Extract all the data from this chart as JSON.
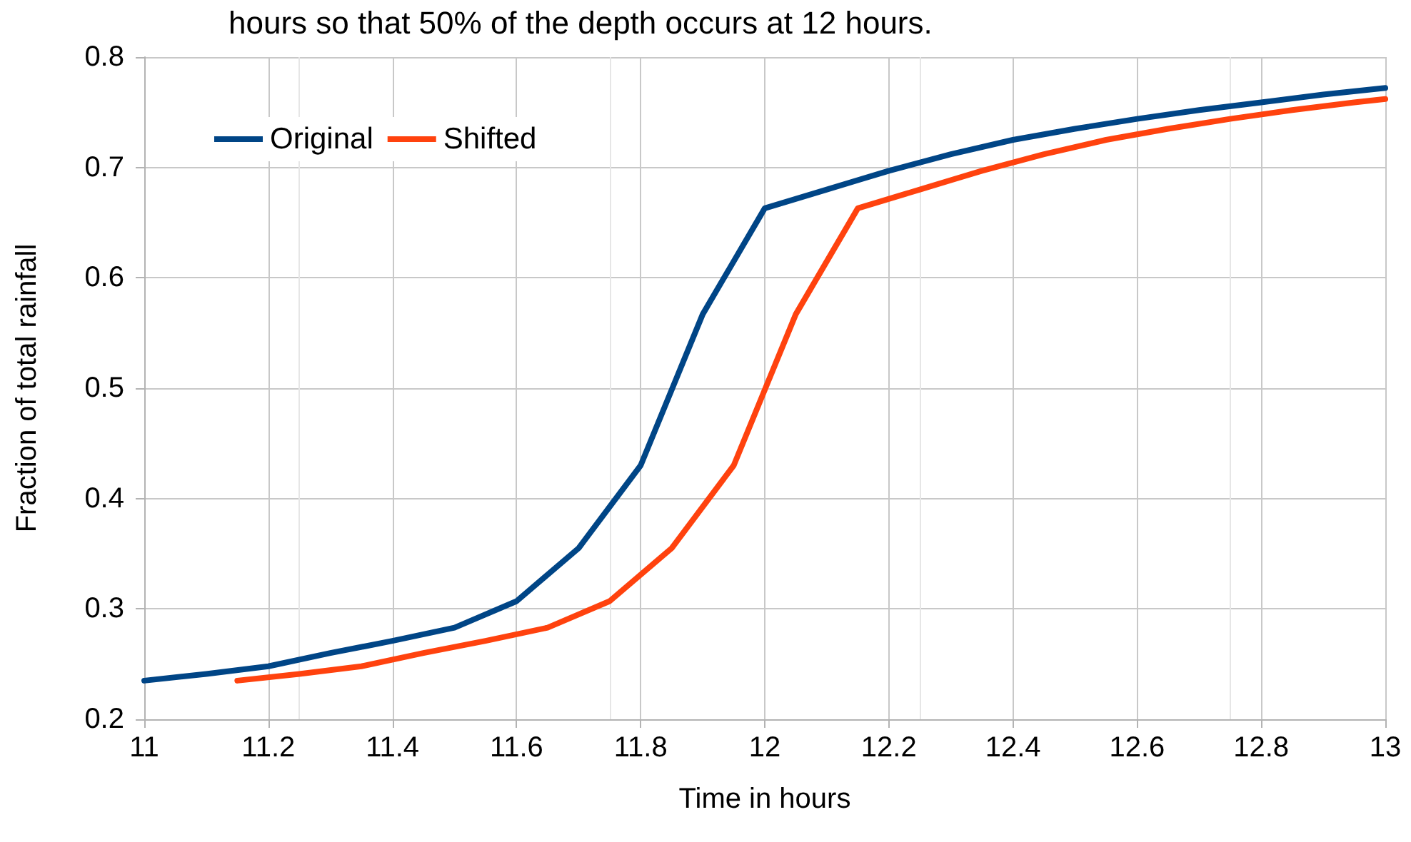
{
  "chart_data": {
    "type": "line",
    "title": "hours so that 50% of the depth occurs at 12 hours.",
    "xlabel": "Time in hours",
    "ylabel": "Fraction of total rainfall",
    "series": [
      {
        "name": "Original",
        "color": "#004586",
        "x": [
          11.0,
          11.1,
          11.2,
          11.3,
          11.4,
          11.5,
          11.6,
          11.7,
          11.8,
          11.9,
          12.0,
          12.1,
          12.2,
          12.3,
          12.4,
          12.5,
          12.6,
          12.7,
          12.8,
          12.9,
          13.0
        ],
        "values": [
          0.235,
          0.241,
          0.248,
          0.26,
          0.271,
          0.283,
          0.307,
          0.355,
          0.43,
          0.567,
          0.663,
          0.68,
          0.697,
          0.712,
          0.725,
          0.735,
          0.744,
          0.752,
          0.759,
          0.766,
          0.772
        ]
      },
      {
        "name": "Shifted",
        "color": "#ff420e",
        "x": [
          11.15,
          11.25,
          11.35,
          11.45,
          11.55,
          11.65,
          11.75,
          11.85,
          11.95,
          12.05,
          12.15,
          12.25,
          12.35,
          12.45,
          12.55,
          12.65,
          12.75,
          12.85,
          12.95,
          13.0
        ],
        "values": [
          0.235,
          0.241,
          0.248,
          0.26,
          0.271,
          0.283,
          0.307,
          0.355,
          0.43,
          0.567,
          0.663,
          0.68,
          0.697,
          0.712,
          0.725,
          0.735,
          0.744,
          0.752,
          0.759,
          0.762
        ]
      }
    ],
    "xlim": [
      11,
      13
    ],
    "xticks": [
      11,
      11.2,
      11.4,
      11.6,
      11.8,
      12,
      12.2,
      12.4,
      12.6,
      12.8,
      13
    ],
    "ylim": [
      0.2,
      0.8
    ],
    "yticks": [
      0.2,
      0.3,
      0.4,
      0.5,
      0.6,
      0.7,
      0.8
    ],
    "grid": true,
    "legend": "top left",
    "marker": "none",
    "line_style": "solid"
  }
}
